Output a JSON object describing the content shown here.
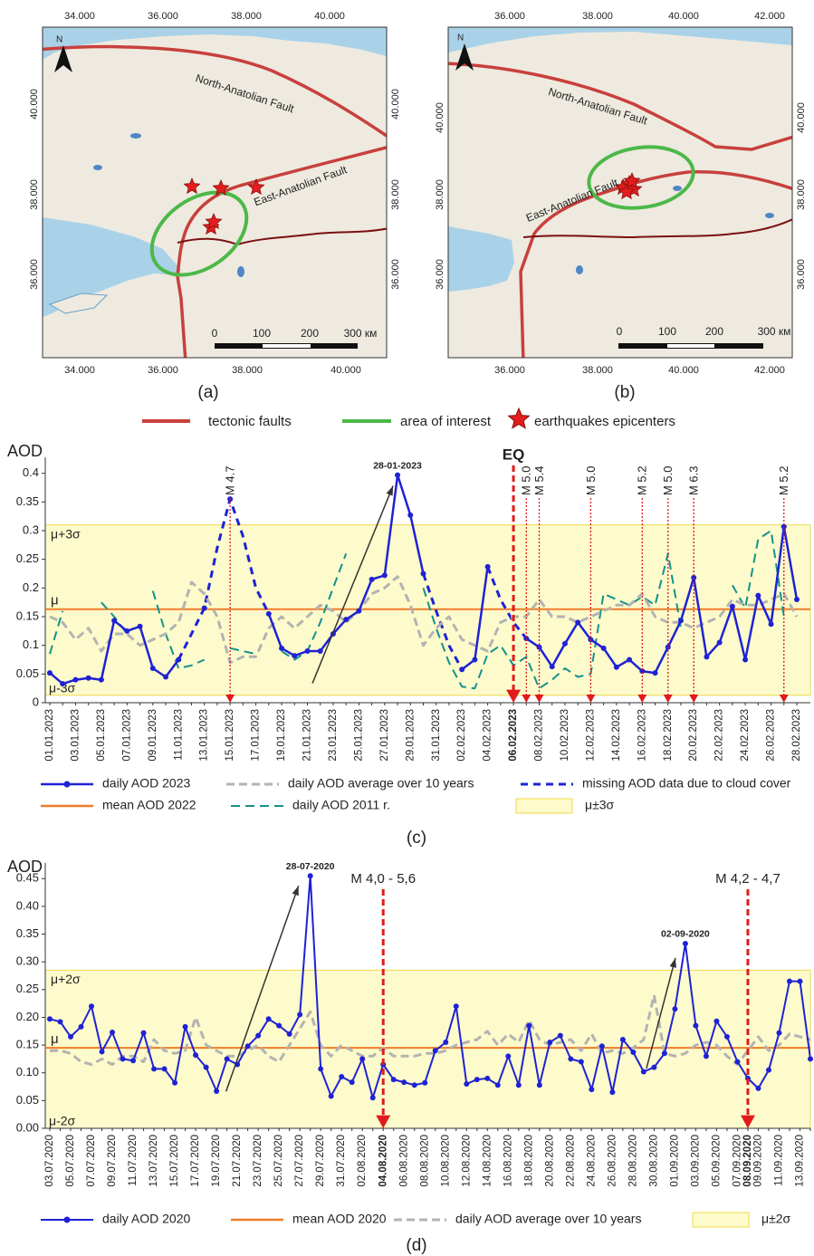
{
  "maps": [
    {
      "caption": "(a)",
      "top_ticks": [
        "34.000",
        "36.000",
        "38.000",
        "40.000"
      ],
      "bottom_ticks": [
        "34.000",
        "36.000",
        "38.000",
        "40.000"
      ],
      "left_ticks": [
        "40.000",
        "38.000",
        "36.000"
      ],
      "right_ticks": [
        "40.000",
        "38.000",
        "36.000"
      ],
      "north": "N",
      "fault_labels": [
        "North-Anatolian Fault",
        "East-Anatolian Fault"
      ],
      "scale_labels": [
        "0",
        "100",
        "200",
        "300 км"
      ]
    },
    {
      "caption": "(b)",
      "top_ticks": [
        "36.000",
        "38.000",
        "40.000",
        "42.000"
      ],
      "bottom_ticks": [
        "36.000",
        "38.000",
        "40.000",
        "42.000"
      ],
      "left_ticks": [
        "40.000",
        "38.000",
        "36.000"
      ],
      "right_ticks": [
        "40.000",
        "38.000",
        "36.000"
      ],
      "north": "N",
      "fault_labels": [
        "North-Anatolian Fault",
        "East-Anatolian Fault"
      ],
      "scale_labels": [
        "0",
        "100",
        "200",
        "300 км"
      ]
    }
  ],
  "legend": [
    "tectonic faults",
    "area of interest",
    "earthquakes epicenters"
  ],
  "chart_data": [
    {
      "type": "line",
      "caption": "(c)",
      "y_label": "AOD",
      "categories": [
        "01.01.2023",
        null,
        "03.01.2023",
        null,
        "05.01.2023",
        null,
        "07.01.2023",
        null,
        "09.01.2023",
        null,
        "11.01.2023",
        null,
        "13.01.2023",
        null,
        "15.01.2023",
        null,
        "17.01.2023",
        null,
        "19.01.2023",
        null,
        "21.01.2023",
        null,
        "23.01.2023",
        null,
        "25.01.2023",
        null,
        "27.01.2023",
        null,
        "29.01.2023",
        null,
        "31.01.2023",
        null,
        "02.02.2023",
        null,
        "04.02.2023",
        null,
        "06.02.2023",
        null,
        "08.02.2023",
        null,
        "10.02.2023",
        null,
        "12.02.2023",
        null,
        "14.02.2023",
        null,
        "16.02.2023",
        null,
        "18.02.2023",
        null,
        "20.02.2023",
        null,
        "22.02.2023",
        null,
        "24.02.2023",
        null,
        "26.02.2023",
        null,
        "28.02.2023"
      ],
      "series": [
        {
          "name": "daily AOD 2023",
          "color": "#1f22d4",
          "width": 2.5,
          "markers": true,
          "values": [
            0.052,
            0.033,
            0.04,
            0.043,
            0.04,
            0.143,
            0.125,
            0.133,
            0.06,
            0.045,
            0.075,
            null,
            0.165,
            null,
            0.355,
            null,
            null,
            0.155,
            0.095,
            0.082,
            0.09,
            0.09,
            0.12,
            0.145,
            0.16,
            0.215,
            0.222,
            0.397,
            0.327,
            0.225,
            null,
            null,
            0.058,
            0.075,
            0.237,
            null,
            null,
            0.112,
            0.097,
            0.063,
            0.103,
            0.14,
            0.11,
            0.095,
            0.062,
            0.075,
            0.055,
            0.052,
            0.097,
            0.143,
            0.218,
            0.08,
            0.105,
            0.168,
            0.075,
            0.187,
            0.137,
            0.307,
            0.18
          ]
        },
        {
          "name": "daily AOD average over 10 years",
          "color": "#b3b3b3",
          "width": 3,
          "dash": "9 5",
          "values": [
            0.15,
            0.14,
            0.11,
            0.13,
            0.09,
            0.12,
            0.12,
            0.1,
            0.11,
            0.12,
            0.14,
            0.21,
            0.19,
            0.15,
            0.07,
            0.08,
            0.08,
            0.13,
            0.15,
            0.13,
            0.15,
            0.17,
            0.16,
            0.14,
            0.16,
            0.19,
            0.2,
            0.22,
            0.17,
            0.1,
            0.13,
            0.15,
            0.11,
            0.1,
            0.09,
            0.14,
            0.15,
            0.15,
            0.18,
            0.15,
            0.15,
            0.14,
            0.15,
            0.16,
            0.17,
            0.17,
            0.19,
            0.15,
            0.14,
            0.14,
            0.13,
            0.14,
            0.15,
            0.18,
            0.17,
            0.17,
            0.18,
            0.19,
            0.15
          ]
        },
        {
          "name": "missing AOD data due to cloud cover",
          "color": "#1f22d4",
          "width": 3,
          "dash": "8 6",
          "values": [
            null,
            null,
            null,
            null,
            null,
            null,
            null,
            null,
            null,
            null,
            0.075,
            0.12,
            0.165,
            0.27,
            0.355,
            0.29,
            0.2,
            0.155,
            null,
            null,
            null,
            null,
            null,
            null,
            null,
            null,
            null,
            null,
            null,
            0.225,
            0.16,
            0.1,
            0.058,
            null,
            0.237,
            0.18,
            0.14,
            0.112,
            null,
            null,
            null,
            null,
            null,
            null,
            null,
            null,
            null,
            null,
            null,
            null,
            null,
            null,
            null,
            null,
            null,
            null,
            null,
            null,
            null
          ]
        },
        {
          "name": "daily AOD 2011 r.",
          "color": "#14918e",
          "width": 2,
          "dash": "10 6",
          "values": [
            0.085,
            0.16,
            null,
            null,
            0.175,
            0.15,
            0.12,
            null,
            0.195,
            0.12,
            0.06,
            0.065,
            0.075,
            null,
            0.095,
            0.09,
            0.085,
            null,
            0.09,
            0.075,
            0.09,
            0.14,
            0.2,
            0.26,
            null,
            null,
            null,
            null,
            null,
            0.2,
            0.13,
            0.07,
            0.028,
            0.025,
            0.085,
            0.1,
            0.065,
            0.08,
            0.025,
            0.04,
            0.06,
            0.045,
            0.05,
            0.19,
            0.18,
            0.17,
            0.185,
            0.17,
            0.26,
            0.13,
            null,
            null,
            null,
            0.205,
            0.165,
            0.285,
            0.3,
            0.15,
            null
          ]
        }
      ],
      "hline": {
        "name": "mean AOD 2022",
        "color": "#f07d2a",
        "value": 0.163,
        "label": "μ"
      },
      "band": {
        "name": "μ±3σ",
        "lower": 0.013,
        "upper": 0.31,
        "lower_label": "μ-3σ",
        "upper_label": "μ+3σ",
        "color": "#fdfbcb",
        "edge": "#efd94a"
      },
      "ylim": [
        0,
        0.42
      ],
      "yticks": [
        0,
        0.05,
        0.1,
        0.15,
        0.2,
        0.25,
        0.3,
        0.35,
        0.4
      ],
      "event_color": "#e01b1b",
      "events": [
        {
          "label": "M 4.7",
          "x": "15.01.2023",
          "orientation": "vertical"
        },
        {
          "label": "EQ",
          "x": "06.02.2023",
          "orientation": "horizontal",
          "emphasis": true,
          "bold": true
        },
        {
          "label": "M 5.0",
          "x": "07.02.2023",
          "orientation": "vertical"
        },
        {
          "label": "M 5.4",
          "x": "08.02.2023",
          "orientation": "vertical"
        },
        {
          "label": "M 5.0",
          "x": "12.02.2023",
          "orientation": "vertical"
        },
        {
          "label": "M 5.2",
          "x": "16.02.2023",
          "orientation": "vertical"
        },
        {
          "label": "M 5.0",
          "x": "18.02.2023",
          "orientation": "vertical"
        },
        {
          "label": "M 6.3",
          "x": "20.02.2023",
          "orientation": "vertical"
        },
        {
          "label": "M 5.2",
          "x": "27.02.2023",
          "orientation": "vertical"
        }
      ],
      "annotations": [
        {
          "text": "28-01-2023",
          "color": "#1f22d4"
        }
      ]
    },
    {
      "type": "line",
      "caption": "(d)",
      "y_label": "AOD",
      "categories": [
        "03.07.2020",
        null,
        "05.07.2020",
        null,
        "07.07.2020",
        null,
        "09.07.2020",
        null,
        "11.07.2020",
        null,
        "13.07.2020",
        null,
        "15.07.2020",
        null,
        "17.07.2020",
        null,
        "19.07.2020",
        null,
        "21.07.2020",
        null,
        "23.07.2020",
        null,
        "25.07.2020",
        null,
        "27.07.2020",
        null,
        "29.07.2020",
        null,
        "31.07.2020",
        null,
        "02.08.2020",
        null,
        "04.08.2020",
        null,
        "06.08.2020",
        null,
        "08.08.2020",
        null,
        "10.08.2020",
        null,
        "12.08.2020",
        null,
        "14.08.2020",
        null,
        "16.08.2020",
        null,
        "18.08.2020",
        null,
        "20.08.2020",
        null,
        "22.08.2020",
        null,
        "24.08.2020",
        null,
        "26.08.2020",
        null,
        "28.08.2020",
        null,
        "30.08.2020",
        null,
        "01.09.2020",
        null,
        "03.09.2020",
        null,
        "05.09.2020",
        null,
        "07.09.2020",
        "08.09.2020",
        "09.09.2020",
        null,
        "11.09.2020",
        null,
        "13.09.2020",
        null
      ],
      "series": [
        {
          "name": "daily AOD 2020",
          "color": "#1f22d4",
          "width": 2,
          "markers": true,
          "values": [
            0.197,
            0.192,
            0.165,
            0.183,
            0.22,
            0.138,
            0.173,
            0.125,
            0.122,
            0.172,
            0.107,
            0.107,
            0.082,
            0.183,
            0.132,
            0.11,
            0.067,
            0.125,
            0.115,
            0.148,
            0.167,
            0.197,
            0.185,
            0.17,
            0.205,
            0.455,
            0.107,
            0.058,
            0.093,
            0.083,
            0.125,
            0.055,
            0.115,
            0.088,
            0.083,
            0.078,
            0.082,
            0.14,
            0.155,
            0.22,
            0.08,
            0.088,
            0.09,
            0.078,
            0.13,
            0.078,
            0.185,
            0.078,
            0.155,
            0.167,
            0.125,
            0.12,
            0.07,
            0.148,
            0.065,
            0.16,
            0.137,
            0.102,
            0.11,
            0.135,
            0.215,
            0.333,
            0.185,
            0.13,
            0.193,
            0.165,
            0.12,
            0.09,
            0.072,
            0.105,
            0.172,
            0.265,
            0.265,
            0.125
          ]
        },
        {
          "name": "daily AOD average over 10 years",
          "color": "#b3b3b3",
          "width": 3,
          "dash": "9 5",
          "values": [
            0.14,
            0.14,
            0.135,
            0.12,
            0.115,
            0.125,
            0.115,
            0.13,
            0.13,
            0.12,
            0.16,
            0.14,
            0.135,
            0.14,
            0.2,
            0.15,
            0.14,
            0.13,
            0.13,
            0.14,
            0.15,
            0.13,
            0.12,
            0.15,
            0.18,
            0.21,
            0.15,
            0.13,
            0.15,
            0.14,
            0.13,
            0.13,
            0.145,
            0.13,
            0.13,
            0.13,
            0.135,
            0.135,
            0.14,
            0.15,
            0.155,
            0.16,
            0.175,
            0.15,
            0.17,
            0.155,
            0.195,
            0.16,
            0.15,
            0.155,
            0.16,
            0.14,
            0.17,
            0.135,
            0.14,
            0.135,
            0.145,
            0.16,
            0.24,
            0.135,
            0.13,
            0.135,
            0.15,
            0.155,
            0.15,
            0.13,
            0.115,
            0.14,
            0.165,
            0.14,
            0.15,
            0.17,
            0.165,
            0.16
          ]
        }
      ],
      "hline": {
        "name": "mean AOD 2020",
        "color": "#f07d2a",
        "value": 0.145,
        "label": "μ"
      },
      "band": {
        "name": "μ±2σ",
        "lower": 0,
        "upper": 0.285,
        "lower_label": "μ-2σ",
        "upper_label": "μ+2σ",
        "color": "#fdfbcb",
        "edge": "#efd94a"
      },
      "ylim": [
        0,
        0.47
      ],
      "yticks": [
        {
          "value": 0,
          "label": "0.00"
        },
        0.05,
        {
          "value": 0.1,
          "label": "0.10"
        },
        0.15,
        {
          "value": 0.2,
          "label": "0.20"
        },
        0.25,
        {
          "value": 0.3,
          "label": "0.30"
        },
        0.35,
        {
          "value": 0.4,
          "label": "0.40"
        },
        0.45
      ],
      "event_color": "#e01b1b",
      "events": [
        {
          "label": "M 4,0 - 5,6",
          "x": "04.08.2020",
          "orientation": "horizontal",
          "emphasis": true
        },
        {
          "label": "M 4,2 - 4,7",
          "x": "08.09.2020",
          "orientation": "horizontal",
          "emphasis": true
        }
      ],
      "annotations": [
        {
          "text": "28-07-2020",
          "color": "#1f22d4"
        },
        {
          "text": "02-09-2020",
          "color": "#1f22d4"
        }
      ]
    }
  ]
}
